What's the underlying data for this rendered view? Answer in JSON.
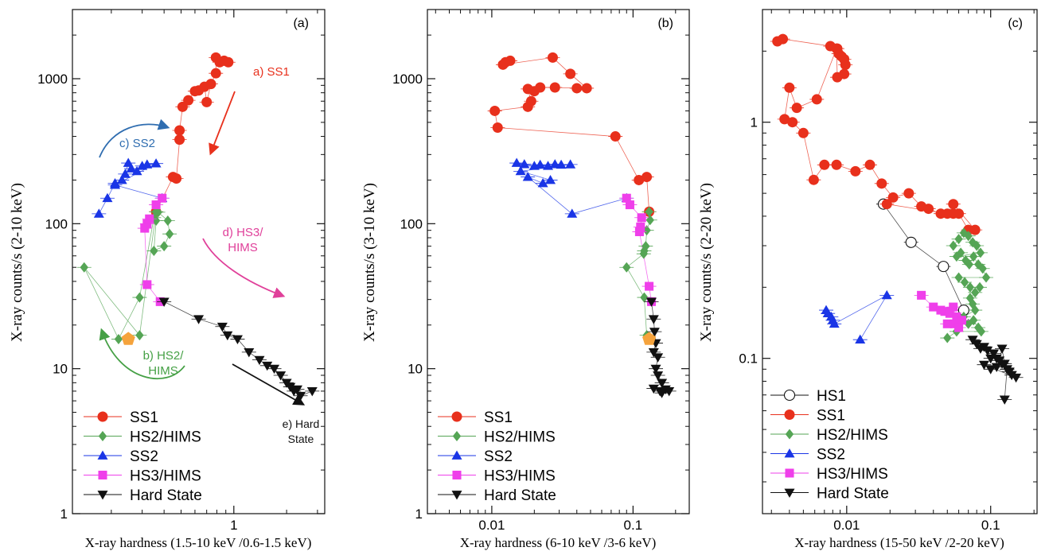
{
  "chart_data": [
    {
      "type": "scatter",
      "panel_label": "(a)",
      "xlabel": "X-ray hardness (1.5-10 keV /0.6-1.5 keV)",
      "ylabel": "X-ray counts/s (2-10 keV)",
      "xscale": "log",
      "yscale": "log",
      "xlim": [
        0.12,
        3.3
      ],
      "ylim": [
        1,
        3000
      ],
      "x_ticks": [
        1
      ],
      "x_tick_labels": [
        "1"
      ],
      "y_ticks": [
        1,
        10,
        100,
        1000
      ],
      "y_tick_labels": [
        "1",
        "10",
        "100",
        "1000"
      ],
      "legend": {
        "position": "bottom-left",
        "entries": [
          "SS1",
          "HS2/HIMS",
          "SS2",
          "HS3/HIMS",
          "Hard State"
        ]
      },
      "series": [
        {
          "name": "SS1",
          "marker": "circle",
          "color": "#e8301c",
          "x": [
            0.36,
            0.45,
            0.47,
            0.49,
            0.49,
            0.51,
            0.55,
            0.6,
            0.63,
            0.68,
            0.7,
            0.74,
            0.79,
            0.79,
            0.83,
            0.88,
            0.93
          ],
          "y": [
            121,
            210,
            205,
            380,
            440,
            640,
            710,
            820,
            830,
            880,
            690,
            920,
            1090,
            1400,
            1300,
            1330,
            1300
          ]
        },
        {
          "name": "HS2/HIMS",
          "marker": "diamond",
          "color": "#55a555",
          "x": [
            0.37,
            0.42,
            0.43,
            0.4,
            0.35,
            0.36,
            0.35,
            0.29,
            0.22,
            0.14,
            0.29,
            0.36
          ],
          "y": [
            120,
            105,
            85,
            70,
            65,
            105,
            110,
            31,
            16,
            50,
            17,
            121
          ]
        },
        {
          "name": "SS2",
          "marker": "triangle-up",
          "color": "#1a35e6",
          "x": [
            0.17,
            0.19,
            0.21,
            0.23,
            0.24,
            0.25,
            0.26,
            0.28,
            0.3,
            0.32,
            0.36,
            0.21,
            0.39
          ],
          "y": [
            117,
            150,
            190,
            200,
            220,
            262,
            240,
            230,
            250,
            256,
            260,
            185,
            150
          ]
        },
        {
          "name": "HS3/HIMS",
          "marker": "square",
          "color": "#ef3fea",
          "x": [
            0.39,
            0.36,
            0.33,
            0.32,
            0.31,
            0.32,
            0.38
          ],
          "y": [
            150,
            135,
            108,
            100,
            93,
            38,
            29
          ]
        },
        {
          "name": "Hard State",
          "marker": "triangle-down",
          "color": "#111111",
          "x": [
            0.4,
            0.63,
            0.86,
            0.92,
            1.05,
            1.22,
            1.4,
            1.55,
            1.7,
            1.85,
            2.0,
            2.1,
            2.2,
            2.3,
            2.4,
            2.8
          ],
          "y": [
            29,
            22,
            19.5,
            17,
            16,
            13,
            11.5,
            10.5,
            10,
            9,
            8,
            7.5,
            7,
            7.2,
            6.5,
            7
          ]
        }
      ],
      "special_points": [
        {
          "x": 0.25,
          "y": 16,
          "marker": "pentagon",
          "color": "#f5a33c"
        }
      ],
      "annotations": [
        {
          "text": "a) SS1",
          "color": "#e8301c"
        },
        {
          "text": "c) SS2",
          "color": "#2f6db0"
        },
        {
          "text": "d) HS3/",
          "color": "#e0409a"
        },
        {
          "text": "HIMS",
          "color": "#e0409a"
        },
        {
          "text": "b) HS2/",
          "color": "#45a045"
        },
        {
          "text": "HIMS",
          "color": "#45a045"
        },
        {
          "text": "e) Hard",
          "color": "#111111"
        },
        {
          "text": "State",
          "color": "#111111"
        }
      ]
    },
    {
      "type": "scatter",
      "panel_label": "(b)",
      "xlabel": "X-ray hardness (6-10 keV /3-6 keV)",
      "ylabel": "X-ray counts/s (3-10 keV)",
      "xscale": "log",
      "yscale": "log",
      "xlim": [
        0.0035,
        0.25
      ],
      "ylim": [
        1,
        3000
      ],
      "x_ticks": [
        0.01,
        0.1
      ],
      "x_tick_labels": [
        "0.01",
        "0.1"
      ],
      "y_ticks": [
        1,
        10,
        100,
        1000
      ],
      "y_tick_labels": [
        "1",
        "10",
        "100",
        "1000"
      ],
      "legend": {
        "position": "bottom-left",
        "entries": [
          "SS1",
          "HS2/HIMS",
          "SS2",
          "HS3/HIMS",
          "Hard State"
        ]
      },
      "series": [
        {
          "name": "SS1",
          "marker": "circle",
          "color": "#e8301c",
          "x": [
            0.13,
            0.125,
            0.11,
            0.075,
            0.011,
            0.0105,
            0.018,
            0.019,
            0.018,
            0.02,
            0.022,
            0.028,
            0.04,
            0.047,
            0.036,
            0.027,
            0.012,
            0.0125,
            0.0135
          ],
          "y": [
            121,
            210,
            200,
            400,
            460,
            600,
            640,
            700,
            850,
            820,
            870,
            870,
            860,
            860,
            1080,
            1400,
            1250,
            1300,
            1330
          ]
        },
        {
          "name": "HS2/HIMS",
          "marker": "diamond",
          "color": "#55a555",
          "x": [
            0.13,
            0.132,
            0.125,
            0.123,
            0.12,
            0.119,
            0.09,
            0.12,
            0.125
          ],
          "y": [
            121,
            106,
            90,
            70,
            65,
            62,
            50,
            31,
            17
          ]
        },
        {
          "name": "SS2",
          "marker": "triangle-up",
          "color": "#1a35e6",
          "x": [
            0.015,
            0.017,
            0.02,
            0.022,
            0.025,
            0.028,
            0.031,
            0.036,
            0.016,
            0.026,
            0.023,
            0.018,
            0.037,
            0.09
          ],
          "y": [
            262,
            257,
            250,
            255,
            250,
            257,
            255,
            256,
            230,
            200,
            190,
            210,
            117,
            150
          ]
        },
        {
          "name": "HS3/HIMS",
          "marker": "square",
          "color": "#ef3fea",
          "x": [
            0.09,
            0.095,
            0.115,
            0.113,
            0.111,
            0.13,
            0.135
          ],
          "y": [
            150,
            135,
            110,
            95,
            88,
            37,
            29
          ]
        },
        {
          "name": "Hard State",
          "marker": "triangle-down",
          "color": "#111111",
          "x": [
            0.135,
            0.14,
            0.142,
            0.145,
            0.14,
            0.15,
            0.145,
            0.15,
            0.16,
            0.14,
            0.155,
            0.17,
            0.18,
            0.16
          ],
          "y": [
            29,
            22,
            18,
            15,
            13,
            12,
            10,
            9,
            8,
            7.3,
            7,
            7.2,
            7,
            6.8
          ]
        }
      ],
      "special_points": [
        {
          "x": 0.13,
          "y": 16,
          "marker": "pentagon",
          "color": "#f5a33c"
        }
      ]
    },
    {
      "type": "scatter",
      "panel_label": "(c)",
      "xlabel": "X-ray hardness (15-50 keV /2-20 keV)",
      "ylabel": "X-ray counts/s (2-20 keV)",
      "xscale": "log",
      "yscale": "log",
      "xlim": [
        0.0026,
        0.21
      ],
      "ylim": [
        0.022,
        3.0
      ],
      "x_ticks": [
        0.01,
        0.1
      ],
      "x_tick_labels": [
        "0.01",
        "0.1"
      ],
      "y_ticks": [
        0.1,
        1
      ],
      "y_tick_labels": [
        "0.1",
        "1"
      ],
      "legend": {
        "position": "bottom-left",
        "entries": [
          "HS1",
          "SS1",
          "HS2/HIMS",
          "SS2",
          "HS3/HIMS",
          "Hard State"
        ]
      },
      "series": [
        {
          "name": "HS1",
          "marker": "circle-open",
          "color": "#111111",
          "x": [
            0.018,
            0.028,
            0.047,
            0.065
          ],
          "y": [
            0.45,
            0.31,
            0.245,
            0.16
          ]
        },
        {
          "name": "SS1",
          "marker": "circle",
          "color": "#e8301c",
          "x": [
            0.0033,
            0.0036,
            0.0077,
            0.0086,
            0.0088,
            0.0092,
            0.0096,
            0.0098,
            0.0096,
            0.0086,
            0.0085,
            0.0062,
            0.0045,
            0.004,
            0.0037,
            0.0042,
            0.005,
            0.0059,
            0.007,
            0.0085,
            0.0115,
            0.0145,
            0.0175,
            0.021,
            0.027,
            0.033,
            0.037,
            0.045,
            0.055,
            0.06,
            0.07,
            0.078,
            0.055,
            0.05,
            0.019
          ],
          "y": [
            2.2,
            2.25,
            2.1,
            2.05,
            1.95,
            1.9,
            1.85,
            1.75,
            1.6,
            1.55,
            2.05,
            1.25,
            1.15,
            1.4,
            1.03,
            1.0,
            0.9,
            0.57,
            0.66,
            0.66,
            0.62,
            0.66,
            0.55,
            0.48,
            0.5,
            0.44,
            0.43,
            0.41,
            0.41,
            0.41,
            0.35,
            0.35,
            0.45,
            0.41,
            0.45
          ]
        },
        {
          "name": "HS2/HIMS",
          "marker": "diamond",
          "color": "#55a555",
          "x": [
            0.055,
            0.06,
            0.065,
            0.07,
            0.075,
            0.08,
            0.085,
            0.058,
            0.062,
            0.067,
            0.071,
            0.076,
            0.082,
            0.088,
            0.093,
            0.06,
            0.066,
            0.072,
            0.078,
            0.084,
            0.072,
            0.075,
            0.078,
            0.065,
            0.07,
            0.076,
            0.082,
            0.086,
            0.058,
            0.05
          ],
          "y": [
            0.3,
            0.32,
            0.34,
            0.33,
            0.31,
            0.3,
            0.28,
            0.27,
            0.28,
            0.26,
            0.25,
            0.27,
            0.25,
            0.24,
            0.22,
            0.22,
            0.21,
            0.2,
            0.19,
            0.2,
            0.18,
            0.17,
            0.16,
            0.15,
            0.14,
            0.145,
            0.135,
            0.13,
            0.13,
            0.122
          ]
        },
        {
          "name": "SS2",
          "marker": "triangle-up",
          "color": "#1a35e6",
          "x": [
            0.0072,
            0.0074,
            0.0078,
            0.008,
            0.0082,
            0.019,
            0.0124
          ],
          "y": [
            0.16,
            0.155,
            0.15,
            0.145,
            0.14,
            0.185,
            0.12
          ]
        },
        {
          "name": "HS3/HIMS",
          "marker": "square",
          "color": "#ef3fea",
          "x": [
            0.033,
            0.04,
            0.045,
            0.048,
            0.052,
            0.055,
            0.058,
            0.063,
            0.05,
            0.056,
            0.06
          ],
          "y": [
            0.185,
            0.165,
            0.16,
            0.158,
            0.155,
            0.165,
            0.15,
            0.145,
            0.14,
            0.14,
            0.135
          ]
        },
        {
          "name": "Hard State",
          "marker": "triangle-down",
          "color": "#111111",
          "x": [
            0.075,
            0.08,
            0.085,
            0.09,
            0.095,
            0.1,
            0.105,
            0.11,
            0.115,
            0.12,
            0.125,
            0.13,
            0.135,
            0.14,
            0.15,
            0.09,
            0.1,
            0.11,
            0.12,
            0.13,
            0.125
          ],
          "y": [
            0.12,
            0.115,
            0.11,
            0.112,
            0.108,
            0.1,
            0.105,
            0.1,
            0.098,
            0.11,
            0.095,
            0.09,
            0.088,
            0.085,
            0.083,
            0.094,
            0.09,
            0.092,
            0.095,
            0.09,
            0.067
          ]
        }
      ]
    }
  ]
}
